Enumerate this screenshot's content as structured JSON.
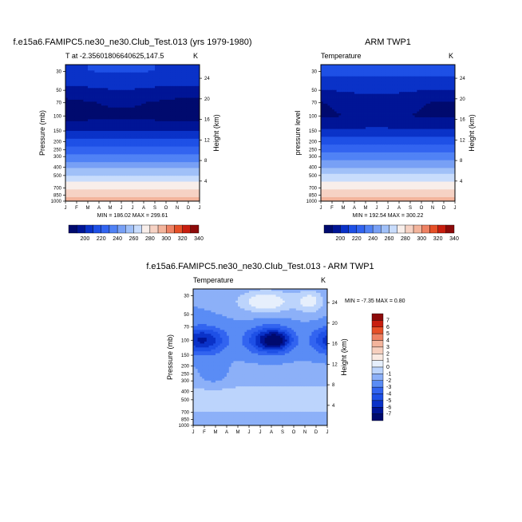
{
  "chart_data": [
    {
      "type": "heatmap",
      "title": "f.e15a6.FAMIPC5.ne30_ne30.Club_Test.013 (yrs 1979-1980)",
      "subtitle_left": "T at -2.35601806640625,147.5",
      "subtitle_right": "K",
      "ylabel": "Pressure (mb)",
      "ylabel_right": "Height (km)",
      "x_ticks": [
        "J",
        "F",
        "M",
        "A",
        "M",
        "J",
        "J",
        "A",
        "S",
        "O",
        "N",
        "D",
        "J"
      ],
      "y_ticks": [
        "30",
        "50",
        "70",
        "100",
        "150",
        "200",
        "250",
        "300",
        "400",
        "500",
        "700",
        "850",
        "1000"
      ],
      "y_ticks_right": [
        "24",
        "20",
        "16",
        "12",
        "8",
        "4"
      ],
      "minmax_text": "MIN = 186.02 MAX = 299.61",
      "colorbar_orientation": "horizontal",
      "colorbar_labels": [
        "200",
        "220",
        "240",
        "260",
        "280",
        "300",
        "320",
        "340"
      ],
      "levels": [
        190,
        200,
        210,
        220,
        230,
        240,
        250,
        260,
        270,
        280,
        290,
        300,
        310,
        320,
        330,
        340
      ],
      "profile": [
        {
          "p": 30,
          "t": 215
        },
        {
          "p": 50,
          "t": 203
        },
        {
          "p": 70,
          "t": 194
        },
        {
          "p": 100,
          "t": 191
        },
        {
          "p": 150,
          "t": 205
        },
        {
          "p": 200,
          "t": 219
        },
        {
          "p": 250,
          "t": 229
        },
        {
          "p": 300,
          "t": 238
        },
        {
          "p": 400,
          "t": 253
        },
        {
          "p": 500,
          "t": 266
        },
        {
          "p": 700,
          "t": 282
        },
        {
          "p": 850,
          "t": 292
        },
        {
          "p": 1000,
          "t": 299
        }
      ],
      "min": 186.02,
      "max": 299.61
    },
    {
      "type": "heatmap",
      "title": "ARM TWP1",
      "subtitle_left": "Temperature",
      "subtitle_right": "K",
      "ylabel": "pressure level",
      "ylabel_right": "Height (km)",
      "x_ticks": [
        "J",
        "F",
        "M",
        "A",
        "M",
        "J",
        "J",
        "A",
        "S",
        "O",
        "N",
        "D",
        "J"
      ],
      "y_ticks": [
        "30",
        "50",
        "70",
        "100",
        "150",
        "200",
        "250",
        "300",
        "400",
        "500",
        "700",
        "850",
        "1000"
      ],
      "y_ticks_right": [
        "24",
        "20",
        "16",
        "12",
        "8",
        "4"
      ],
      "minmax_text": "MIN = 192.54 MAX = 300.22",
      "colorbar_orientation": "horizontal",
      "colorbar_labels": [
        "200",
        "220",
        "240",
        "260",
        "280",
        "300",
        "320",
        "340"
      ],
      "levels": [
        190,
        200,
        210,
        220,
        230,
        240,
        250,
        260,
        270,
        280,
        290,
        300,
        310,
        320,
        330,
        340
      ],
      "profile": [
        {
          "p": 30,
          "t": 218
        },
        {
          "p": 50,
          "t": 206
        },
        {
          "p": 70,
          "t": 197
        },
        {
          "p": 100,
          "t": 195
        },
        {
          "p": 150,
          "t": 207
        },
        {
          "p": 200,
          "t": 221
        },
        {
          "p": 250,
          "t": 231
        },
        {
          "p": 300,
          "t": 240
        },
        {
          "p": 400,
          "t": 255
        },
        {
          "p": 500,
          "t": 268
        },
        {
          "p": 700,
          "t": 283
        },
        {
          "p": 850,
          "t": 293
        },
        {
          "p": 1000,
          "t": 300
        }
      ],
      "min": 192.54,
      "max": 300.22
    },
    {
      "type": "heatmap",
      "title": "f.e15a6.FAMIPC5.ne30_ne30.Club_Test.013 - ARM TWP1",
      "subtitle_left": "Temperature",
      "subtitle_right": "K",
      "ylabel": "Pressure (mb)",
      "ylabel_right": "Height (km)",
      "x_ticks": [
        "J",
        "F",
        "M",
        "A",
        "M",
        "J",
        "J",
        "A",
        "S",
        "O",
        "N",
        "D",
        "J"
      ],
      "y_ticks": [
        "30",
        "50",
        "70",
        "100",
        "150",
        "200",
        "250",
        "300",
        "400",
        "500",
        "700",
        "850",
        "1000"
      ],
      "y_ticks_right": [
        "24",
        "20",
        "16",
        "12",
        "8",
        "4"
      ],
      "minmax_text": "MIN =  -7.35 MAX =   0.80",
      "colorbar_orientation": "vertical",
      "colorbar_labels": [
        "7",
        "6",
        "5",
        "4",
        "3",
        "2",
        "1",
        "0",
        "-1",
        "-2",
        "-3",
        "-4",
        "-5",
        "-6",
        "-7"
      ],
      "levels": [
        -7,
        -6,
        -5,
        -4,
        -3,
        -2,
        -1,
        0,
        1,
        2,
        3,
        4,
        5,
        6,
        7
      ],
      "min": -7.35,
      "max": 0.8
    }
  ],
  "colors": {
    "seq16": [
      "#000a6e",
      "#001596",
      "#0a32c8",
      "#1e50e6",
      "#3264f0",
      "#5082f5",
      "#78a0f5",
      "#a0c0f8",
      "#c8dcfc",
      "#f8eeea",
      "#f6d2c4",
      "#f3b49c",
      "#ee8264",
      "#e65028",
      "#c81e0f",
      "#8c0a0a"
    ],
    "diff16": [
      "#000a6e",
      "#001596",
      "#0a32c8",
      "#1e50e6",
      "#3264f0",
      "#5a8cf5",
      "#8cb0f8",
      "#bcd4fc",
      "#e6effc",
      "#faeae2",
      "#f6cfbe",
      "#f3b49c",
      "#ee8264",
      "#e65028",
      "#c81e0f",
      "#8c0a0a"
    ]
  }
}
